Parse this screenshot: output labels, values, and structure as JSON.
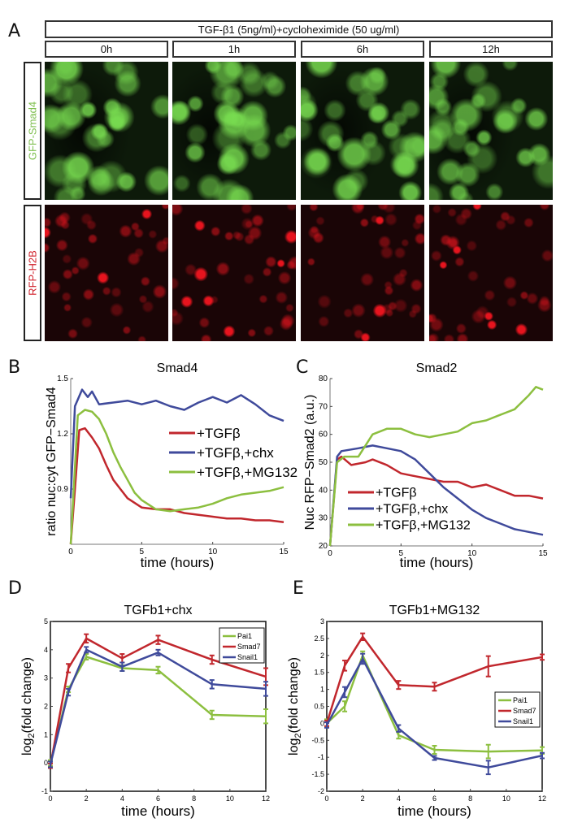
{
  "panel_a": {
    "label": "A",
    "header": "TGF-β1 (5ng/ml)+cycloheximide (50 ug/ml)",
    "timepoints": [
      "0h",
      "1h",
      "6h",
      "12h"
    ],
    "rows": [
      {
        "label": "GFP-Smad4",
        "color": "#7fbf4f"
      },
      {
        "label": "RFP-H2B",
        "color": "#d0202a"
      }
    ]
  },
  "colors": {
    "red": "#c1272d",
    "blue": "#3f4a9b",
    "green": "#8cbf3f"
  },
  "chart_data": [
    {
      "panel": "B",
      "type": "line",
      "title": "Smad4",
      "xlabel": "time (hours)",
      "ylabel": "ratio nuc:cyt GFP−Smad4",
      "xlim": [
        0,
        15
      ],
      "ylim": [
        0.6,
        1.5
      ],
      "xticks": [
        0,
        5,
        10,
        15
      ],
      "yticks": [
        0.9,
        1.2,
        1.5
      ],
      "legend": "center-right",
      "series": [
        {
          "name": "+TGFβ",
          "color": "#c1272d",
          "x": [
            0,
            0.3,
            0.6,
            1,
            1.5,
            2,
            2.5,
            3,
            3.5,
            4,
            5,
            6,
            7,
            8,
            9,
            10,
            11,
            12,
            13,
            14,
            15
          ],
          "y": [
            0.6,
            0.9,
            1.22,
            1.23,
            1.18,
            1.12,
            1.03,
            0.95,
            0.9,
            0.85,
            0.8,
            0.79,
            0.79,
            0.77,
            0.76,
            0.75,
            0.74,
            0.74,
            0.73,
            0.73,
            0.72
          ]
        },
        {
          "name": "+TGFβ,+chx",
          "color": "#3f4a9b",
          "x": [
            0,
            0.3,
            0.8,
            1.2,
            1.5,
            2,
            3,
            4,
            5,
            6,
            7,
            8,
            9,
            10,
            11,
            12,
            13,
            14,
            15
          ],
          "y": [
            0.85,
            1.35,
            1.44,
            1.4,
            1.43,
            1.36,
            1.37,
            1.38,
            1.36,
            1.38,
            1.35,
            1.33,
            1.37,
            1.4,
            1.37,
            1.41,
            1.36,
            1.3,
            1.27
          ]
        },
        {
          "name": "+TGFβ,+MG132",
          "color": "#8cbf3f",
          "x": [
            0,
            0.5,
            1,
            1.5,
            2,
            2.5,
            3,
            3.5,
            4,
            4.5,
            5,
            6,
            7,
            8,
            9,
            10,
            11,
            12,
            13,
            14,
            15
          ],
          "y": [
            0.6,
            1.3,
            1.33,
            1.32,
            1.28,
            1.2,
            1.1,
            1.02,
            0.95,
            0.88,
            0.84,
            0.79,
            0.78,
            0.79,
            0.8,
            0.82,
            0.85,
            0.87,
            0.88,
            0.89,
            0.91
          ]
        }
      ]
    },
    {
      "panel": "C",
      "type": "line",
      "title": "Smad2",
      "xlabel": "time (hours)",
      "ylabel": "Nuc RFP−Smad2 (a.u.)",
      "xlim": [
        0,
        15
      ],
      "ylim": [
        20,
        80
      ],
      "xticks": [
        0,
        5,
        10,
        15
      ],
      "yticks": [
        20,
        30,
        40,
        50,
        60,
        70,
        80
      ],
      "legend": "bottom-left",
      "series": [
        {
          "name": "+TGFβ",
          "color": "#c1272d",
          "x": [
            0,
            0.5,
            0.8,
            1.5,
            2.5,
            3,
            4,
            5,
            6,
            7,
            8,
            9,
            10,
            11,
            12,
            13,
            14,
            15
          ],
          "y": [
            20,
            51,
            52,
            49,
            50,
            51,
            49,
            46,
            45,
            44,
            43,
            43,
            41,
            42,
            40,
            38,
            38,
            37
          ]
        },
        {
          "name": "+TGFβ,+chx",
          "color": "#3f4a9b",
          "x": [
            0,
            0.5,
            0.8,
            2,
            3,
            4,
            5,
            6,
            7,
            8,
            9,
            10,
            11,
            12,
            13,
            14,
            15
          ],
          "y": [
            20,
            52,
            54,
            55,
            56,
            55,
            54,
            51,
            46,
            41,
            37,
            33,
            30,
            28,
            26,
            25,
            24
          ]
        },
        {
          "name": "+TGFβ,+MG132",
          "color": "#8cbf3f",
          "x": [
            0,
            0.5,
            1,
            2,
            3,
            4,
            5,
            6,
            7,
            8,
            9,
            10,
            11,
            12,
            13,
            14,
            14.5,
            15
          ],
          "y": [
            20,
            50,
            52,
            52,
            60,
            62,
            62,
            60,
            59,
            60,
            61,
            64,
            65,
            67,
            69,
            74,
            77,
            76
          ]
        }
      ]
    },
    {
      "panel": "D",
      "type": "line",
      "title": "TGFb1+chx",
      "xlabel": "time (hours)",
      "ylabel": "log2(fold change)",
      "xlim": [
        0,
        12
      ],
      "ylim": [
        -1,
        5
      ],
      "xticks": [
        0,
        2,
        4,
        6,
        8,
        10,
        12
      ],
      "yticks": [
        -1,
        0,
        1,
        2,
        3,
        4,
        5
      ],
      "legend": "top-right",
      "series": [
        {
          "name": "Pai1",
          "color": "#8cbf3f",
          "x": [
            0,
            1,
            2,
            4,
            6,
            9,
            12
          ],
          "y": [
            0,
            2.6,
            3.75,
            3.35,
            3.28,
            1.7,
            1.65
          ],
          "err": [
            0.1,
            0.1,
            0.1,
            0.1,
            0.12,
            0.15,
            0.25
          ]
        },
        {
          "name": "Smad7",
          "color": "#c1272d",
          "x": [
            0,
            1,
            2,
            4,
            6,
            9,
            12
          ],
          "y": [
            -0.1,
            3.35,
            4.4,
            3.7,
            4.35,
            3.65,
            3.05
          ],
          "err": [
            0.08,
            0.15,
            0.15,
            0.15,
            0.15,
            0.15,
            0.3
          ]
        },
        {
          "name": "Snail1",
          "color": "#3f4a9b",
          "x": [
            0,
            1,
            2,
            4,
            6,
            9,
            12
          ],
          "y": [
            -0.05,
            2.5,
            4.0,
            3.4,
            3.9,
            2.78,
            2.62
          ],
          "err": [
            0.1,
            0.12,
            0.1,
            0.15,
            0.1,
            0.15,
            0.25
          ]
        }
      ]
    },
    {
      "panel": "E",
      "type": "line",
      "title": "TGFb1+MG132",
      "xlabel": "time (hours)",
      "ylabel": "log2(fold change)",
      "xlim": [
        0,
        12
      ],
      "ylim": [
        -2,
        3
      ],
      "xticks": [
        0,
        2,
        4,
        6,
        8,
        10,
        12
      ],
      "yticks": [
        -2,
        -1.5,
        -1,
        -0.5,
        0,
        0.5,
        1,
        1.5,
        2,
        2.5,
        3
      ],
      "legend": "center-right",
      "series": [
        {
          "name": "Pai1",
          "color": "#8cbf3f",
          "x": [
            0,
            1,
            2,
            4,
            6,
            9,
            12
          ],
          "y": [
            0,
            0.5,
            2.0,
            -0.35,
            -0.78,
            -0.83,
            -0.8
          ],
          "err": [
            0.12,
            0.15,
            0.12,
            0.1,
            0.12,
            0.2,
            0.1
          ]
        },
        {
          "name": "Smad7",
          "color": "#c1272d",
          "x": [
            0,
            1,
            2,
            4,
            6,
            9,
            12
          ],
          "y": [
            0,
            1.7,
            2.55,
            1.13,
            1.08,
            1.68,
            1.95
          ],
          "err": [
            0.08,
            0.15,
            0.1,
            0.12,
            0.12,
            0.3,
            0.08
          ]
        },
        {
          "name": "Snail1",
          "color": "#3f4a9b",
          "x": [
            0,
            1,
            2,
            4,
            6,
            9,
            12
          ],
          "y": [
            -0.05,
            0.92,
            1.9,
            -0.15,
            -1.02,
            -1.3,
            -0.95
          ],
          "err": [
            0.08,
            0.15,
            0.15,
            0.1,
            0.06,
            0.2,
            0.08
          ]
        }
      ]
    }
  ]
}
